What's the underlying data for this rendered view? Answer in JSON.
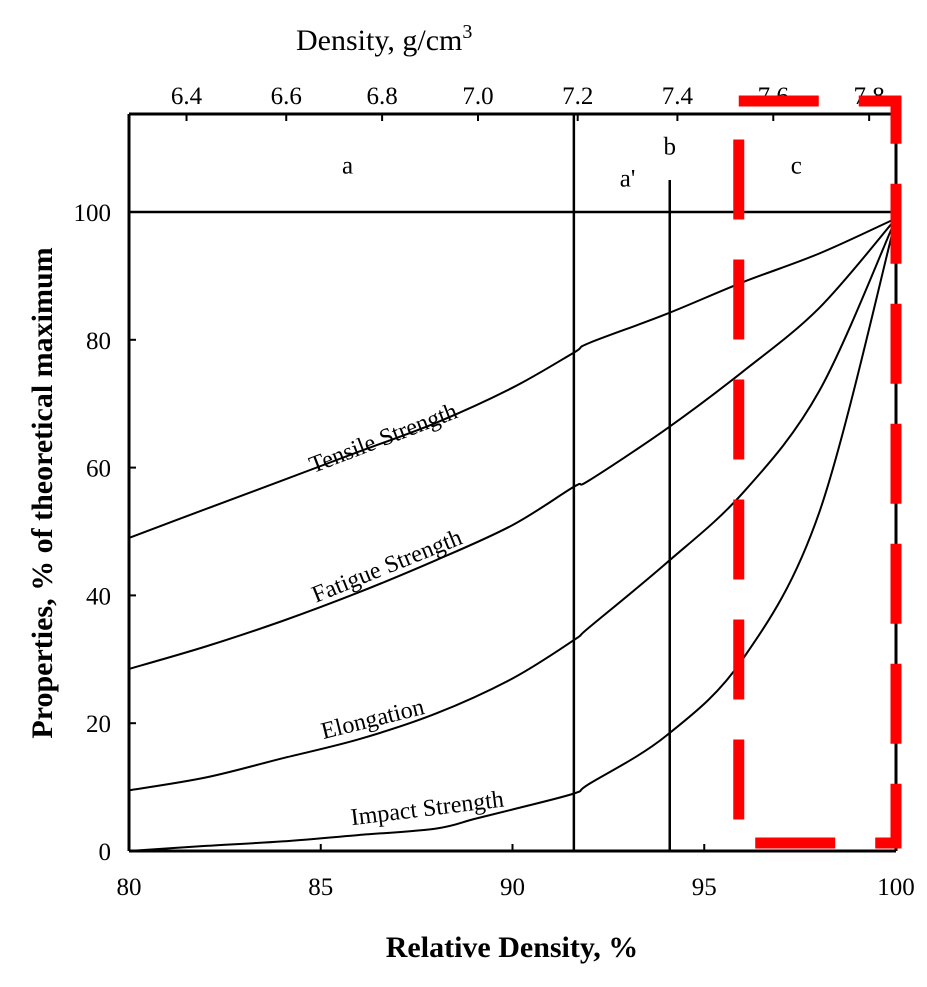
{
  "chart_data": {
    "type": "line",
    "title": "",
    "xlabel": "Relative Density, %",
    "ylabel": "Properties, % of theoretical maximum",
    "xlim": [
      80,
      100
    ],
    "ylim": [
      0,
      115
    ],
    "x_ticks": [
      80,
      85,
      90,
      95,
      100
    ],
    "y_ticks": [
      0,
      20,
      40,
      60,
      80,
      100
    ],
    "top_axis": {
      "label": "Density, g/cm",
      "label_superscript": "3",
      "ticks": [
        {
          "label": "6.4",
          "x": 81.5
        },
        {
          "label": "6.6",
          "x": 84.1
        },
        {
          "label": "6.8",
          "x": 86.6
        },
        {
          "label": "7.0",
          "x": 89.1
        },
        {
          "label": "7.2",
          "x": 91.7
        },
        {
          "label": "7.4",
          "x": 94.3
        },
        {
          "label": "7.6",
          "x": 96.8
        },
        {
          "label": "7.8",
          "x": 99.3
        }
      ]
    },
    "reference_line": {
      "y": 100
    },
    "vertical_lines": [
      {
        "x": 91.6,
        "y_top": 115
      },
      {
        "x": 94.1,
        "y_top": 105
      }
    ],
    "regions": [
      {
        "label": "a",
        "x": 85.7,
        "y": 106
      },
      {
        "label": "a'",
        "x": 93.0,
        "y": 104
      },
      {
        "label": "b",
        "x": 94.1,
        "y": 109
      },
      {
        "label": "c",
        "x": 97.4,
        "y": 106
      }
    ],
    "highlight_box": {
      "x_range": [
        95.9,
        100
      ],
      "y_range": [
        0,
        115
      ],
      "color": "#ff0000"
    },
    "series": [
      {
        "name": "Tensile Strength",
        "x": [
          80,
          82,
          84,
          86,
          88,
          90,
          91.6,
          92,
          94,
          96,
          98,
          100
        ],
        "y": [
          49,
          53.5,
          58,
          62.5,
          67,
          72.5,
          78,
          79.5,
          84,
          89,
          93.5,
          99
        ]
      },
      {
        "name": "Fatigue Strength",
        "x": [
          80,
          82,
          84,
          86,
          88,
          90,
          91.6,
          92,
          94,
          96,
          98,
          100
        ],
        "y": [
          28.5,
          32,
          36,
          40.5,
          45.5,
          51,
          57,
          58,
          66,
          75,
          85,
          99
        ]
      },
      {
        "name": "Elongation",
        "x": [
          80,
          82,
          84,
          86,
          88,
          90,
          91.6,
          92,
          94,
          96,
          98,
          100
        ],
        "y": [
          9.5,
          11.5,
          14.5,
          17.5,
          21.5,
          27,
          33,
          35,
          45,
          56,
          72,
          99
        ]
      },
      {
        "name": "Impact Strength",
        "x": [
          80,
          82,
          84,
          86,
          88,
          89,
          90,
          91.6,
          92,
          94,
          96,
          98,
          100
        ],
        "y": [
          0,
          0.8,
          1.5,
          2.5,
          3.5,
          5,
          6.5,
          9,
          10.5,
          18,
          30,
          53,
          99
        ]
      }
    ],
    "series_labels": [
      {
        "text": "Tensile Strength",
        "x": 86.7,
        "y": 63.5,
        "angle": -21
      },
      {
        "text": "Fatigue Strength",
        "x": 86.8,
        "y": 43.5,
        "angle": -22
      },
      {
        "text": "Elongation",
        "x": 86.4,
        "y": 19.5,
        "angle": -14
      },
      {
        "text": "Impact Strength",
        "x": 87.8,
        "y": 5.5,
        "angle": -7
      }
    ]
  }
}
